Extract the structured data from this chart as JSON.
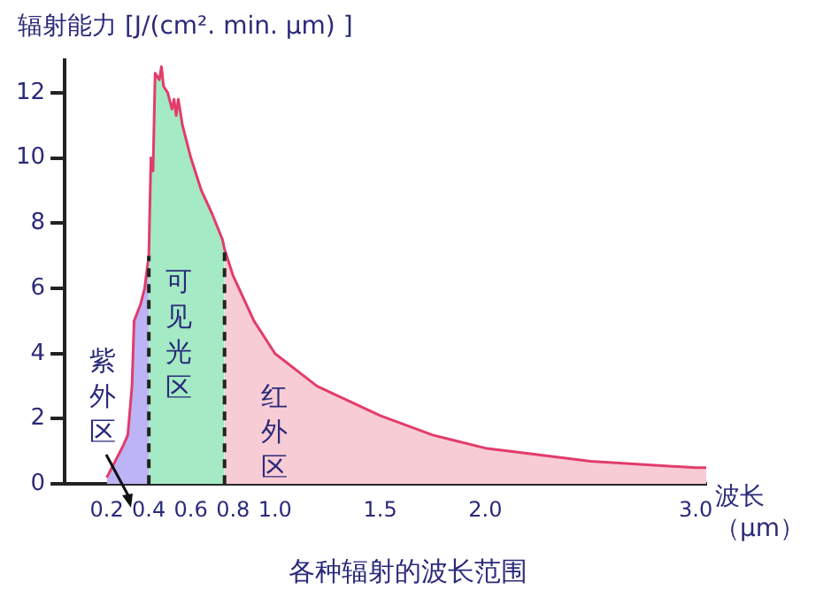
{
  "chart_data": {
    "type": "area",
    "title": "各种辐射的波长范围",
    "xlabel": "波长（μm）",
    "ylabel": "辐射能力 [J/(cm². min. μm) ]",
    "xlim": [
      0,
      3.05
    ],
    "xticks": [
      0.2,
      0.4,
      0.6,
      0.8,
      {
        "value": 1,
        "label": "1.0"
      },
      1.5,
      {
        "value": 2,
        "label": "2.0"
      },
      {
        "value": 3,
        "label": "3.0"
      }
    ],
    "ylim": [
      0,
      13
    ],
    "yticks": [
      0,
      2,
      4,
      6,
      8,
      10,
      12
    ],
    "grid": false,
    "legend": false,
    "marker": "none",
    "series": [
      {
        "color": "#bcb4f4",
        "x": [
          0.2,
          0.28,
          0.3,
          0.32,
          0.33,
          0.36,
          0.38,
          0.4
        ],
        "values": [
          0.2,
          1.2,
          1.5,
          3,
          5,
          5.5,
          6,
          7
        ]
      },
      {
        "color": "#a4eac4",
        "x": [
          0.4,
          0.41,
          0.42,
          0.43,
          0.45,
          0.46,
          0.47,
          0.49,
          0.51,
          0.52,
          0.53,
          0.54,
          0.56,
          0.6,
          0.65,
          0.7,
          0.75,
          0.76
        ],
        "values": [
          7,
          10,
          9.6,
          12.6,
          12.4,
          12.8,
          12.2,
          12,
          11.5,
          11.8,
          11.3,
          11.8,
          11,
          10,
          9,
          8.3,
          7.5,
          7.2
        ]
      },
      {
        "color": "#f8ccd4",
        "x": [
          0.76,
          0.8,
          0.9,
          1.0,
          1.2,
          1.5,
          1.75,
          2.0,
          2.5,
          3.0,
          3.05
        ],
        "values": [
          7.2,
          6.4,
          5,
          4,
          3,
          2.1,
          1.5,
          1.1,
          0.7,
          0.5,
          0.5
        ]
      },
      {
        "type": "line",
        "color": "#e23c6a",
        "x": [
          0.2,
          0.28,
          0.3,
          0.32,
          0.33,
          0.36,
          0.38,
          0.4,
          0.41,
          0.42,
          0.43,
          0.45,
          0.46,
          0.47,
          0.49,
          0.51,
          0.52,
          0.53,
          0.54,
          0.56,
          0.6,
          0.65,
          0.7,
          0.75,
          0.76,
          0.8,
          0.9,
          1.0,
          1.2,
          1.5,
          1.75,
          2.0,
          2.5,
          3.0,
          3.05
        ],
        "values": [
          0.2,
          1.2,
          1.5,
          3,
          5,
          5.5,
          6,
          7,
          10,
          9.6,
          12.6,
          12.4,
          12.8,
          12.2,
          12,
          11.5,
          11.8,
          11.3,
          11.8,
          11,
          10,
          9,
          8.3,
          7.5,
          7.2,
          6.4,
          5,
          4,
          3,
          2.1,
          1.5,
          1.1,
          0.7,
          0.5,
          0.5
        ]
      }
    ],
    "ref_lines": [
      {
        "axis": "x",
        "value": 0.4,
        "color": "#222222",
        "line_style": "dashed"
      },
      {
        "axis": "x",
        "value": 0.76,
        "color": "#222222",
        "line_style": "dashed"
      }
    ],
    "annotations": [
      "紫外区",
      "可见光区",
      "红外区"
    ]
  }
}
